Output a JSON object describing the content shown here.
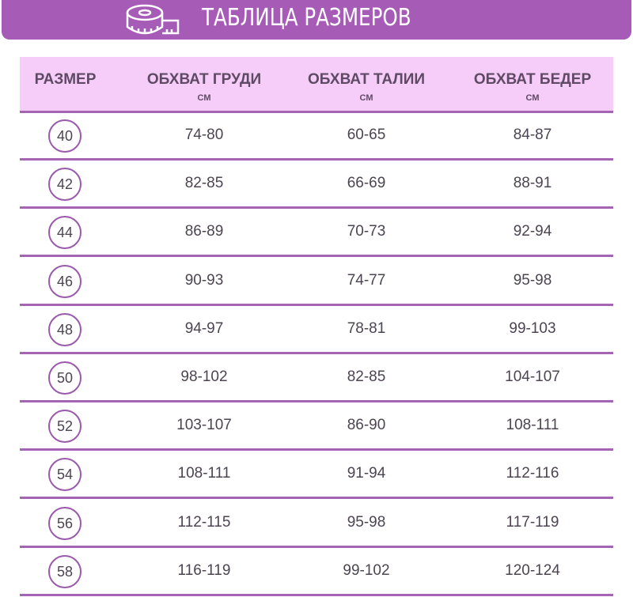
{
  "banner": {
    "title": "ТАБЛИЦА РАЗМЕРОВ",
    "icon": "measuring-tape-icon"
  },
  "colors": {
    "banner": "#a65cb7",
    "header_bg": "#f6cdf8",
    "lines": "#a365b3",
    "text": "#4d4452"
  },
  "table": {
    "headers": [
      {
        "label": "РАЗМЕР",
        "unit": ""
      },
      {
        "label": "ОБХВАТ ГРУДИ",
        "unit": "СМ"
      },
      {
        "label": "ОБХВАТ ТАЛИИ",
        "unit": "СМ"
      },
      {
        "label": "ОБХВАТ БЕДЕР",
        "unit": "СМ"
      }
    ],
    "rows": [
      [
        "40",
        "74-80",
        "60-65",
        "84-87"
      ],
      [
        "42",
        "82-85",
        "66-69",
        "88-91"
      ],
      [
        "44",
        "86-89",
        "70-73",
        "92-94"
      ],
      [
        "46",
        "90-93",
        "74-77",
        "95-98"
      ],
      [
        "48",
        "94-97",
        "78-81",
        "99-103"
      ],
      [
        "50",
        "98-102",
        "82-85",
        "104-107"
      ],
      [
        "52",
        "103-107",
        "86-90",
        "108-111"
      ],
      [
        "54",
        "108-111",
        "91-94",
        "112-116"
      ],
      [
        "56",
        "112-115",
        "95-98",
        "117-119"
      ],
      [
        "58",
        "116-119",
        "99-102",
        "120-124"
      ]
    ]
  }
}
